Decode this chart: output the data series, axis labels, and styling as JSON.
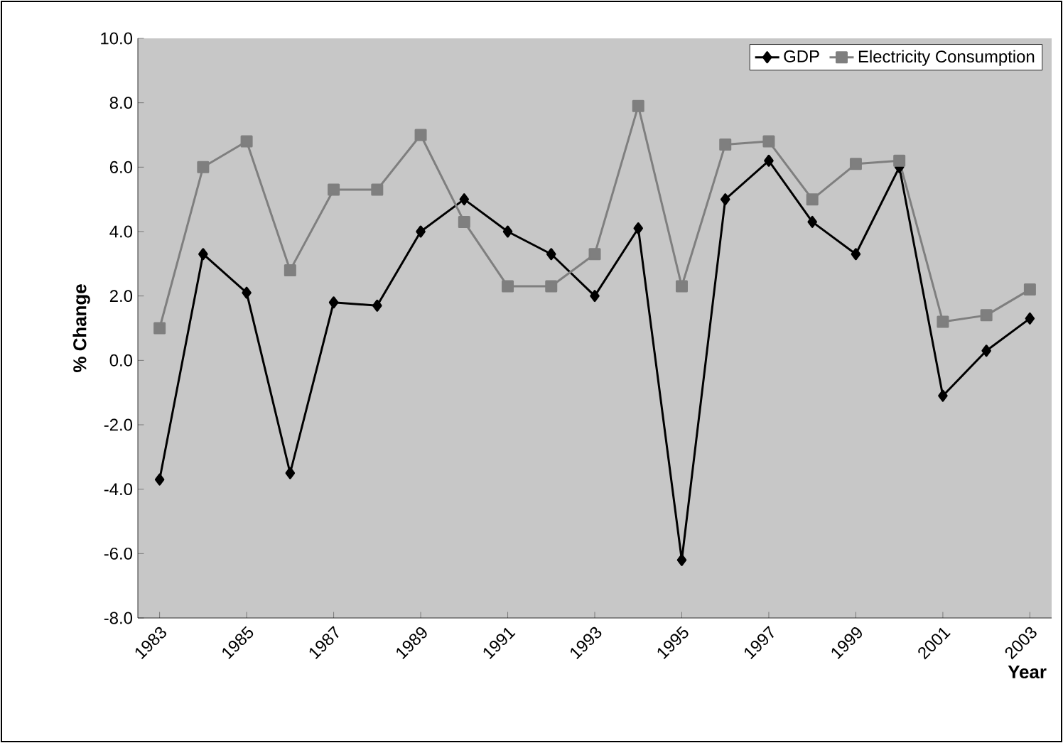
{
  "chart_data": {
    "type": "line",
    "x": [
      1983,
      1984,
      1985,
      1986,
      1987,
      1988,
      1989,
      1990,
      1991,
      1992,
      1993,
      1994,
      1995,
      1996,
      1997,
      1998,
      1999,
      2000,
      2001,
      2002,
      2003
    ],
    "series": [
      {
        "name": "GDP",
        "color": "#000000",
        "marker": "diamond",
        "values": [
          -3.7,
          3.3,
          2.1,
          -3.5,
          1.8,
          1.7,
          4.0,
          5.0,
          4.0,
          3.3,
          2.0,
          4.1,
          -6.2,
          5.0,
          6.2,
          4.3,
          3.3,
          6.0,
          -1.1,
          0.3,
          1.3
        ]
      },
      {
        "name": "Electricity Consumption",
        "color": "#7f7f7f",
        "marker": "square",
        "values": [
          1.0,
          6.0,
          6.8,
          2.8,
          5.3,
          5.3,
          7.0,
          4.3,
          2.3,
          2.3,
          3.3,
          7.9,
          2.3,
          6.7,
          6.8,
          5.0,
          6.1,
          6.2,
          1.2,
          1.4,
          2.2
        ]
      }
    ],
    "xlabel": "Year",
    "ylabel": "% Change",
    "xlim": [
      1982.5,
      2003.5
    ],
    "xticks": [
      1983,
      1985,
      1987,
      1989,
      1991,
      1993,
      1995,
      1997,
      1999,
      2001,
      2003
    ],
    "ylim": [
      -8,
      10
    ],
    "yticks": [
      {
        "value": -8,
        "label": "-8.0"
      },
      {
        "value": -6,
        "label": "-6.0"
      },
      {
        "value": -4,
        "label": "-4.0"
      },
      {
        "value": -2,
        "label": "-2.0"
      },
      {
        "value": 0,
        "label": "0.0"
      },
      {
        "value": 2,
        "label": "2.0"
      },
      {
        "value": 4,
        "label": "4.0"
      },
      {
        "value": 6,
        "label": "6.0"
      },
      {
        "value": 8,
        "label": "8.0"
      },
      {
        "value": 10,
        "label": "10.0"
      }
    ],
    "legend": "top right"
  }
}
